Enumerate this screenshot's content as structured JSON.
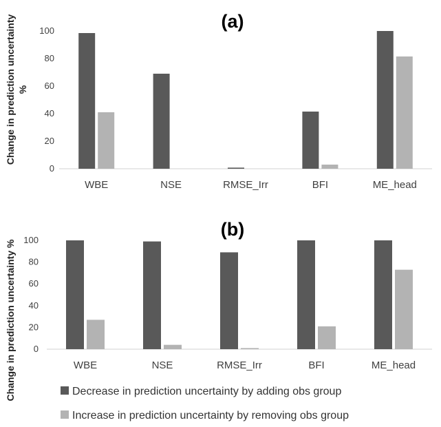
{
  "colors": {
    "decrease": "#595959",
    "increase": "#b3b3b3",
    "axis": "#d0d0d0"
  },
  "legend": {
    "decrease": "Decrease in prediction uncertainty by adding obs group",
    "increase": "Increase in prediction uncertainty by removing obs group"
  },
  "chart_data": [
    {
      "type": "bar",
      "title": "(a)",
      "ylabel_line1": "Change in prediction uncertainty",
      "ylabel_line2": "%",
      "categories": [
        "WBE",
        "NSE",
        "RMSE_Irr",
        "BFI",
        "ME_head"
      ],
      "yticks": [
        "0",
        "20",
        "40",
        "60",
        "80",
        "100"
      ],
      "ylim": [
        0,
        100
      ],
      "series": [
        {
          "key": "decrease",
          "values": [
            98.5,
            69,
            0.8,
            41.5,
            100
          ]
        },
        {
          "key": "increase",
          "values": [
            41,
            0,
            0,
            3,
            81.5
          ]
        }
      ]
    },
    {
      "type": "bar",
      "title": "(b)",
      "ylabel_line1": "Change in prediction uncertainty %",
      "ylabel_line2": "",
      "categories": [
        "WBE",
        "NSE",
        "RMSE_Irr",
        "BFI",
        "ME_head"
      ],
      "yticks": [
        "0",
        "20",
        "40",
        "60",
        "80",
        "100"
      ],
      "ylim": [
        0,
        100
      ],
      "series": [
        {
          "key": "decrease",
          "values": [
            100,
            99,
            89,
            100,
            100
          ]
        },
        {
          "key": "increase",
          "values": [
            27,
            4,
            1,
            21,
            73
          ]
        }
      ]
    }
  ]
}
